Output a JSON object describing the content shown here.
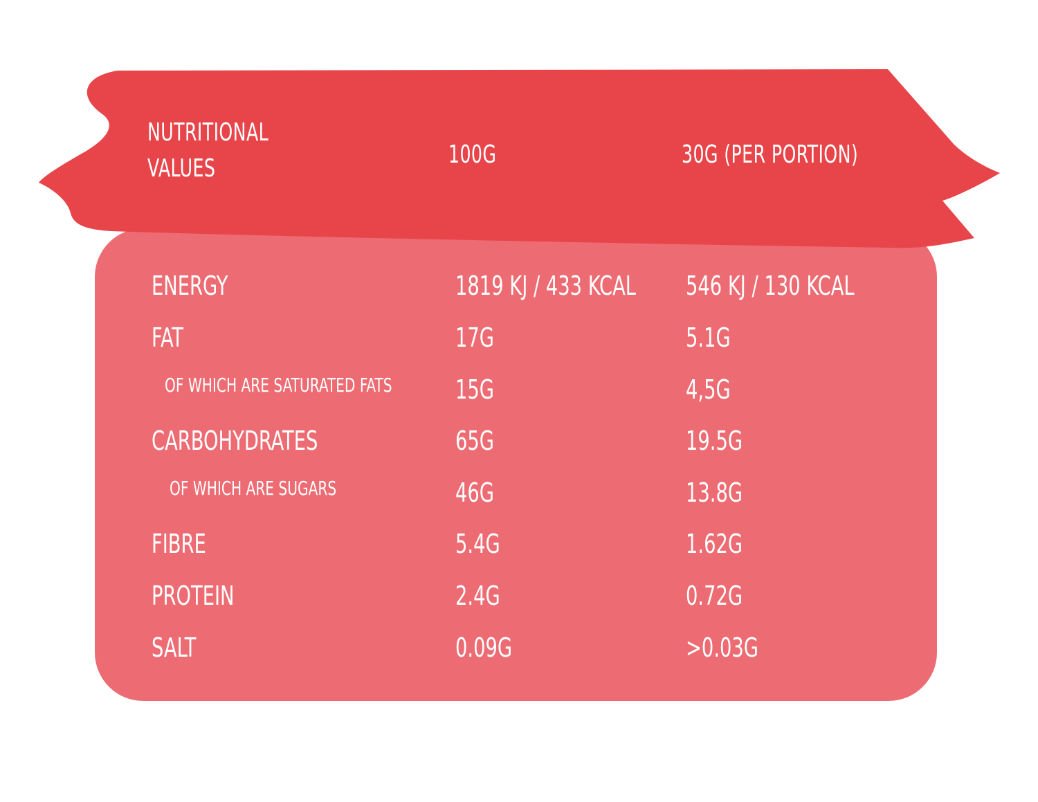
{
  "colors": {
    "banner": "#e8454a",
    "panel": "#ed6b72",
    "text": "#ffffff"
  },
  "header": {
    "label_line1": "NUTRITIONAL",
    "label_line2": "VALUES",
    "col_100": "100G",
    "col_30": "30G (PER PORTION)"
  },
  "rows": [
    {
      "label": "ENERGY",
      "per_100": "1819 KJ / 433 KCAL",
      "per_30": "546 KJ / 130 KCAL",
      "sub": false
    },
    {
      "label": "FAT",
      "per_100": "17G",
      "per_30": "5.1G",
      "sub": false
    },
    {
      "label": "OF WHICH ARE SATURATED FATS",
      "per_100": "15G",
      "per_30": "4,5G",
      "sub": true
    },
    {
      "label": "CARBOHYDRATES",
      "per_100": "65G",
      "per_30": "19.5G",
      "sub": false
    },
    {
      "label": "OF WHICH ARE SUGARS",
      "per_100": "46G",
      "per_30": "13.8G",
      "sub": true
    },
    {
      "label": "FIBRE",
      "per_100": "5.4G",
      "per_30": "1.62G",
      "sub": false
    },
    {
      "label": "PROTEIN",
      "per_100": "2.4G",
      "per_30": "0.72G",
      "sub": false
    },
    {
      "label": "SALT",
      "per_100": "0.09G",
      "per_30": ">0.03G",
      "sub": false
    }
  ]
}
